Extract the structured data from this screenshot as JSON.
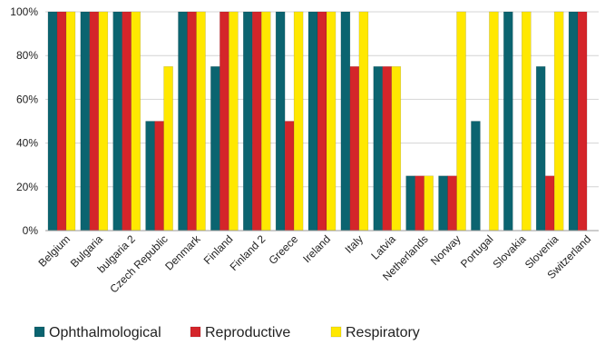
{
  "chart_data": {
    "type": "bar",
    "categories": [
      "Belgium",
      "Bulgaria",
      "bulgaria 2",
      "Czech Republic",
      "Denmark",
      "Finland",
      "Finland 2",
      "Greece",
      "Ireland",
      "Italy",
      "Latvia",
      "Netherlands",
      "Norway",
      "Portugal",
      "Slovakia",
      "Slovenia",
      "Switzerland"
    ],
    "series": [
      {
        "name": "Ophthalmological",
        "color": "#0b6470",
        "values": [
          100,
          100,
          100,
          50,
          100,
          75,
          100,
          100,
          100,
          100,
          75,
          25,
          25,
          50,
          100,
          75,
          100
        ]
      },
      {
        "name": "Reproductive",
        "color": "#d4252a",
        "values": [
          100,
          100,
          100,
          50,
          100,
          100,
          100,
          50,
          100,
          75,
          75,
          25,
          25,
          0,
          0,
          25,
          100
        ]
      },
      {
        "name": "Respiratory",
        "color": "#ffe800",
        "values": [
          100,
          100,
          100,
          75,
          100,
          100,
          100,
          100,
          100,
          100,
          75,
          25,
          100,
          100,
          100,
          100,
          0
        ]
      }
    ],
    "yticks": [
      "0%",
      "20%",
      "40%",
      "60%",
      "80%",
      "100%"
    ],
    "ylim": [
      0,
      100
    ],
    "grid": true,
    "legend_position": "bottom-left"
  }
}
